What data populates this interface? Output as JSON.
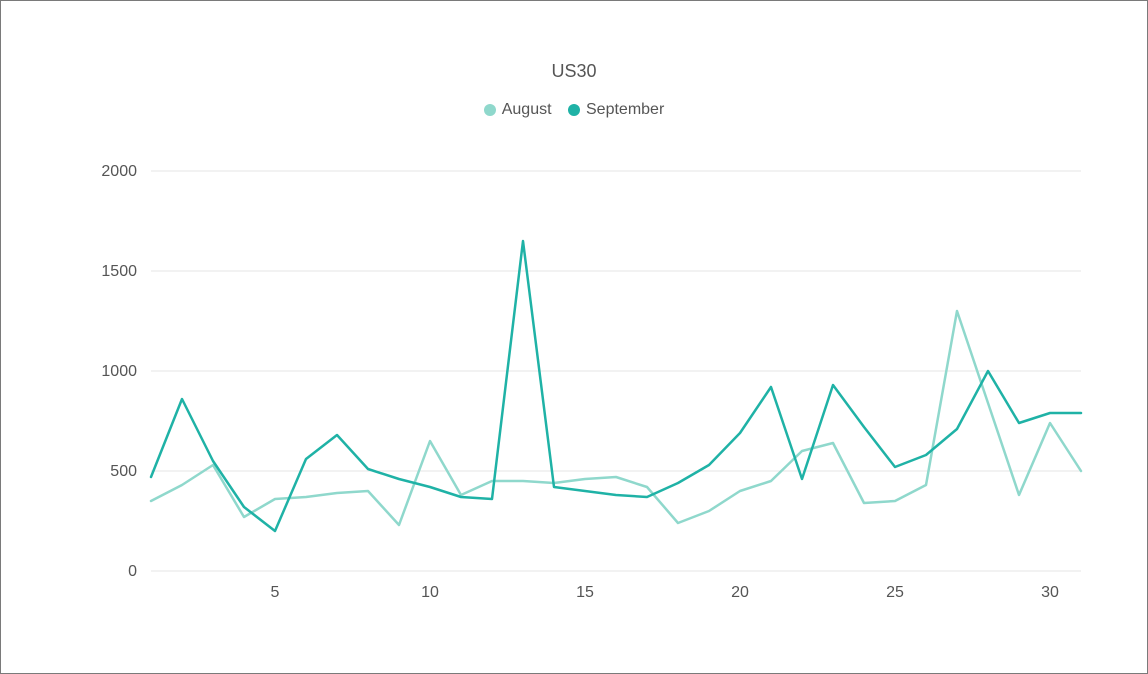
{
  "chart": {
    "type": "line",
    "title": "US30",
    "title_fontsize": 18,
    "legend": {
      "position": "top-center",
      "fontsize": 16,
      "items": [
        {
          "label": "August",
          "color": "#8fd8cc"
        },
        {
          "label": "September",
          "color": "#1fb2a6"
        }
      ]
    },
    "background_color": "#ffffff",
    "border_color": "#7a7a7a",
    "grid_color": "#e6e6e6",
    "axis_text_color": "#555555",
    "axis_fontsize": 16,
    "line_width": 2.5,
    "xlim": [
      1,
      31
    ],
    "ylim": [
      0,
      2000
    ],
    "yticks": [
      0,
      500,
      1000,
      1500,
      2000
    ],
    "xticks": [
      5,
      10,
      15,
      20,
      25,
      30
    ],
    "x": [
      1,
      2,
      3,
      4,
      5,
      6,
      7,
      8,
      9,
      10,
      11,
      12,
      13,
      14,
      15,
      16,
      17,
      18,
      19,
      20,
      21,
      22,
      23,
      24,
      25,
      26,
      27,
      28,
      29,
      30,
      31
    ],
    "series": [
      {
        "name": "August",
        "color": "#8fd8cc",
        "values": [
          350,
          430,
          530,
          270,
          360,
          370,
          390,
          400,
          230,
          650,
          380,
          450,
          450,
          440,
          460,
          470,
          420,
          240,
          300,
          400,
          450,
          600,
          640,
          340,
          350,
          430,
          1300,
          840,
          380,
          740,
          500
        ]
      },
      {
        "name": "September",
        "color": "#1fb2a6",
        "values": [
          470,
          860,
          550,
          320,
          200,
          560,
          680,
          510,
          460,
          420,
          370,
          360,
          1650,
          420,
          400,
          380,
          370,
          440,
          530,
          690,
          920,
          460,
          930,
          720,
          520,
          580,
          710,
          1000,
          740,
          790,
          790
        ]
      }
    ]
  }
}
